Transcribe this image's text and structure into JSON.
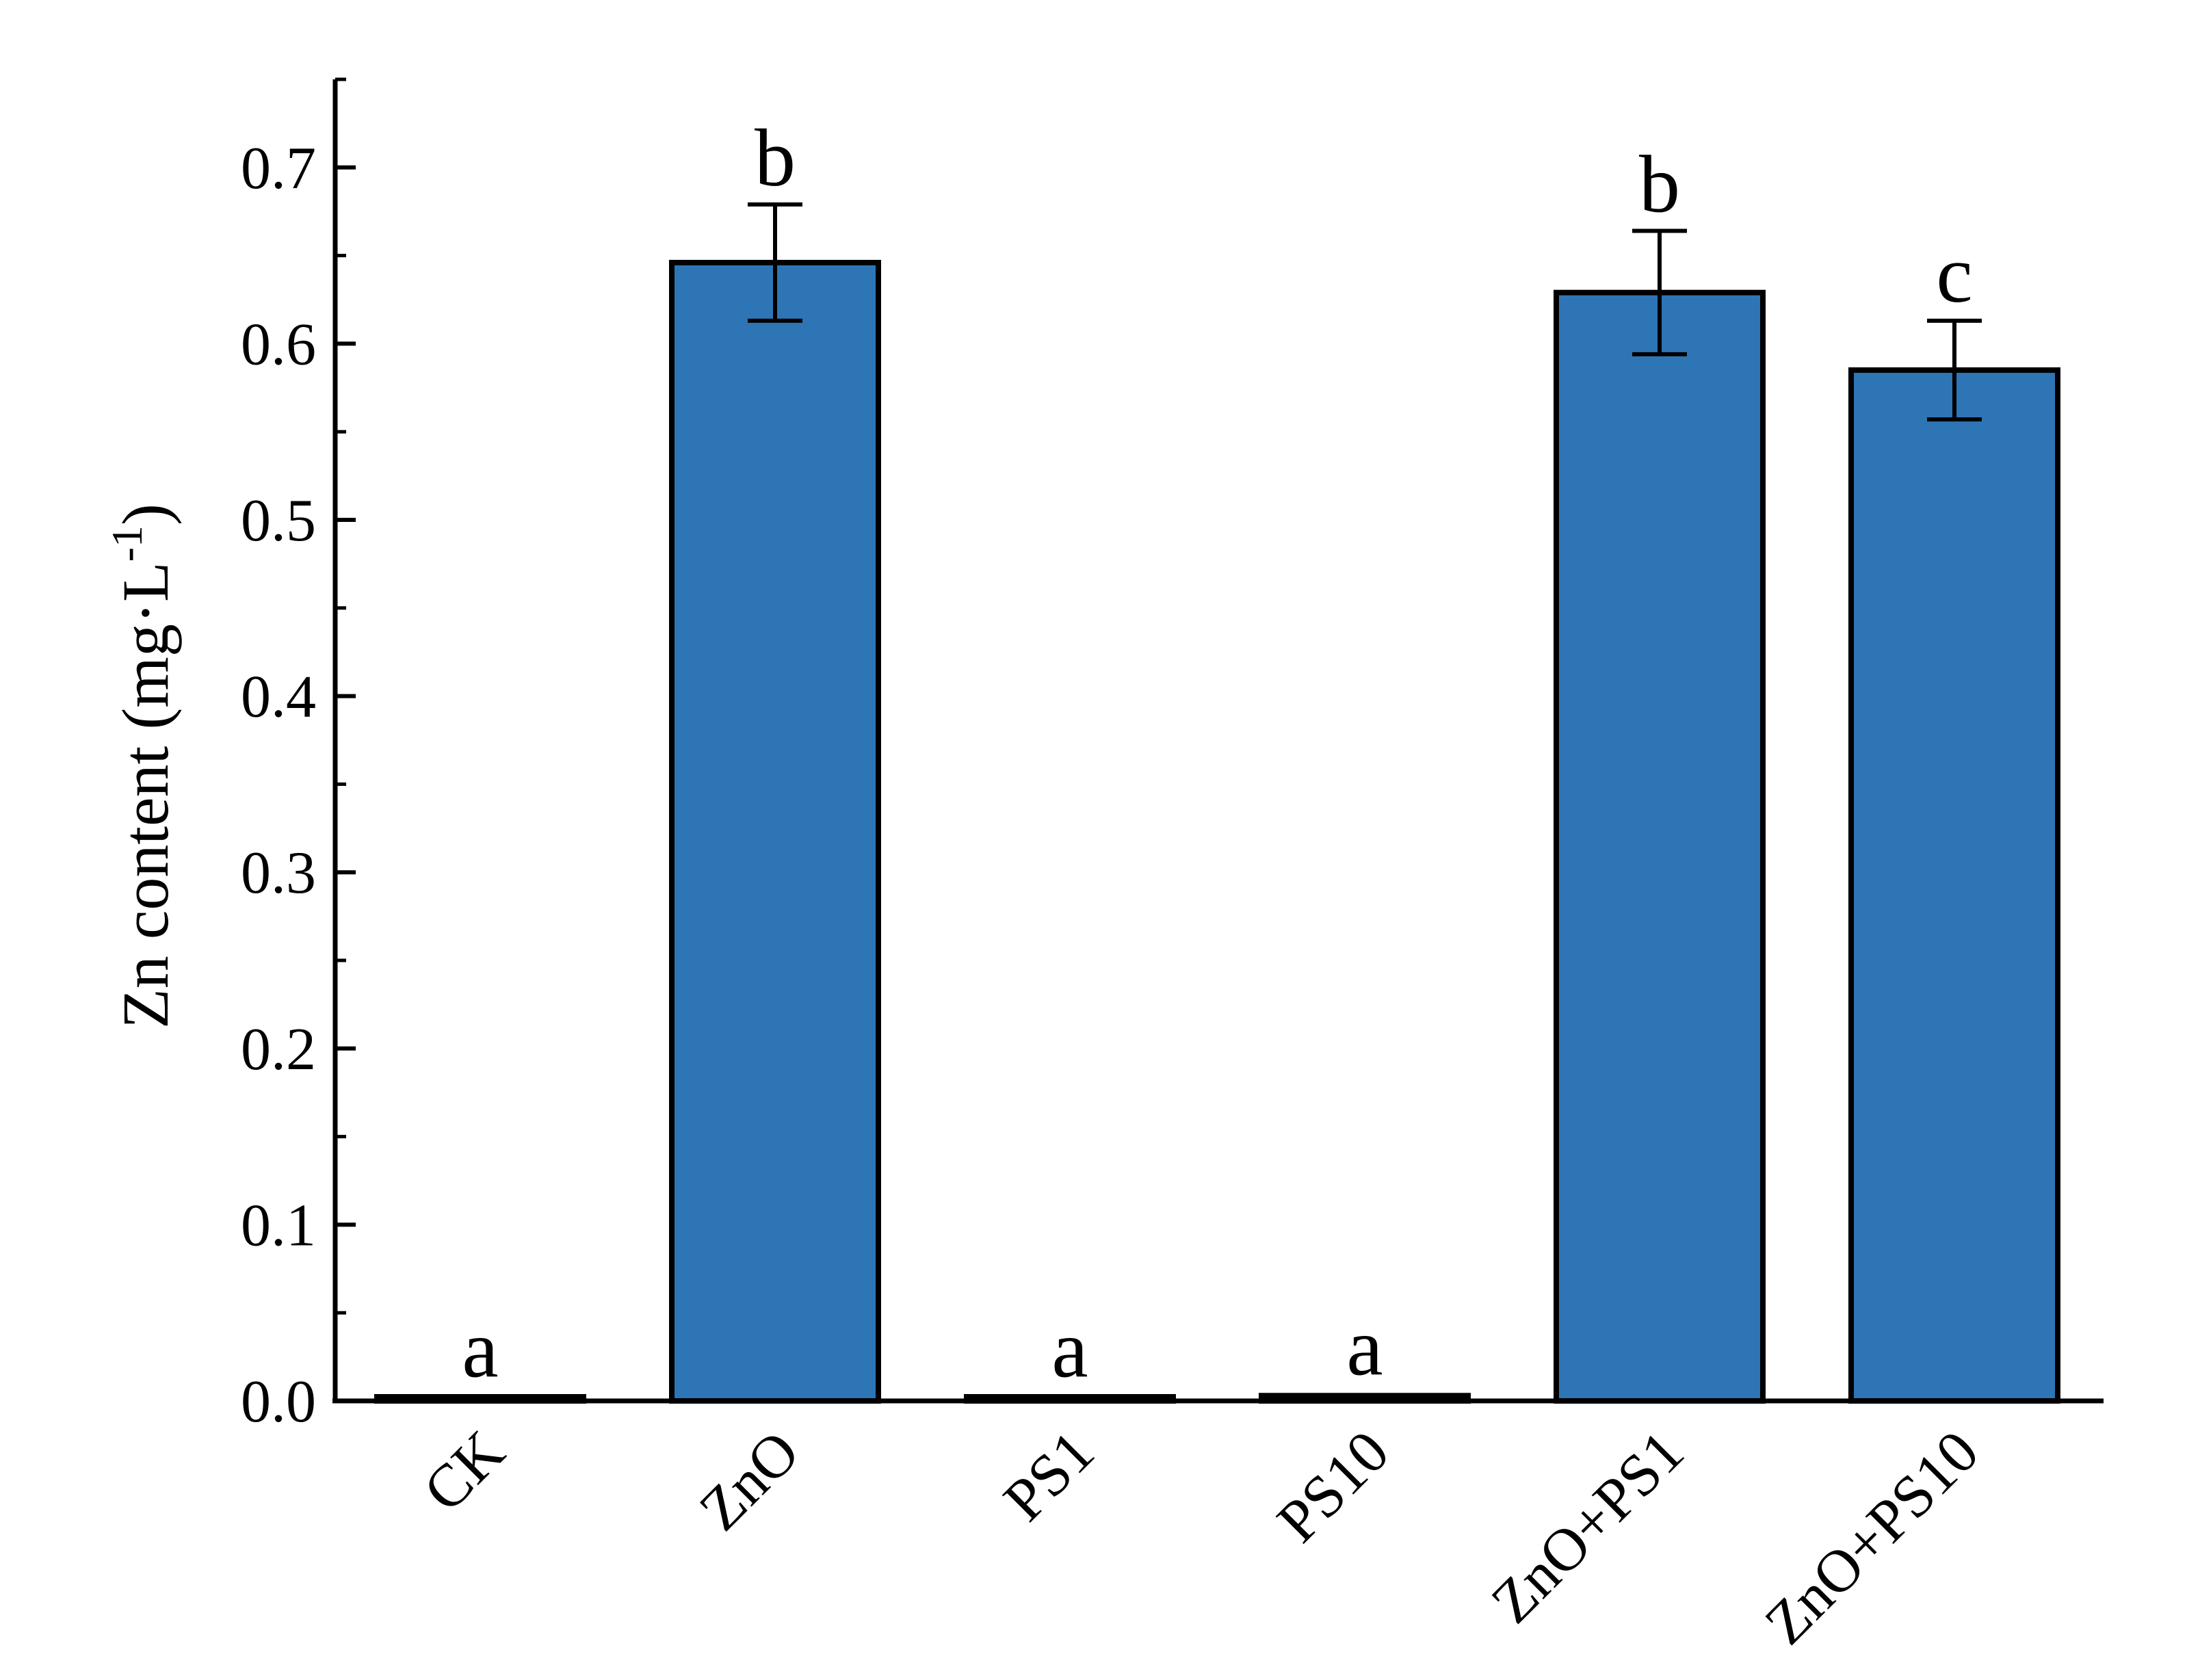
{
  "chart_data": {
    "type": "bar",
    "title": "",
    "xlabel": "",
    "ylabel": {
      "main": "Zn content (mg·L",
      "superscript": "-1",
      "close": ")"
    },
    "categories": [
      "CK",
      "ZnO",
      "PS1",
      "PS10",
      "ZnO+PS1",
      "ZnO+PS10"
    ],
    "values": [
      0.002,
      0.646,
      0.002,
      0.003,
      0.629,
      0.585
    ],
    "errors": [
      0.001,
      0.033,
      0.001,
      0.001,
      0.035,
      0.028
    ],
    "significance_letters": [
      "a",
      "b",
      "a",
      "a",
      "b",
      "c"
    ],
    "ylim": [
      0,
      0.75
    ],
    "yticks": [
      0.0,
      0.1,
      0.2,
      0.3,
      0.4,
      0.5,
      0.6,
      0.7
    ],
    "ytick_labels": [
      "0.0",
      "0.1",
      "0.2",
      "0.3",
      "0.4",
      "0.5",
      "0.6",
      "0.7"
    ],
    "grid": false,
    "bar_color": "#2e75b6",
    "edge_color": "#000000"
  }
}
